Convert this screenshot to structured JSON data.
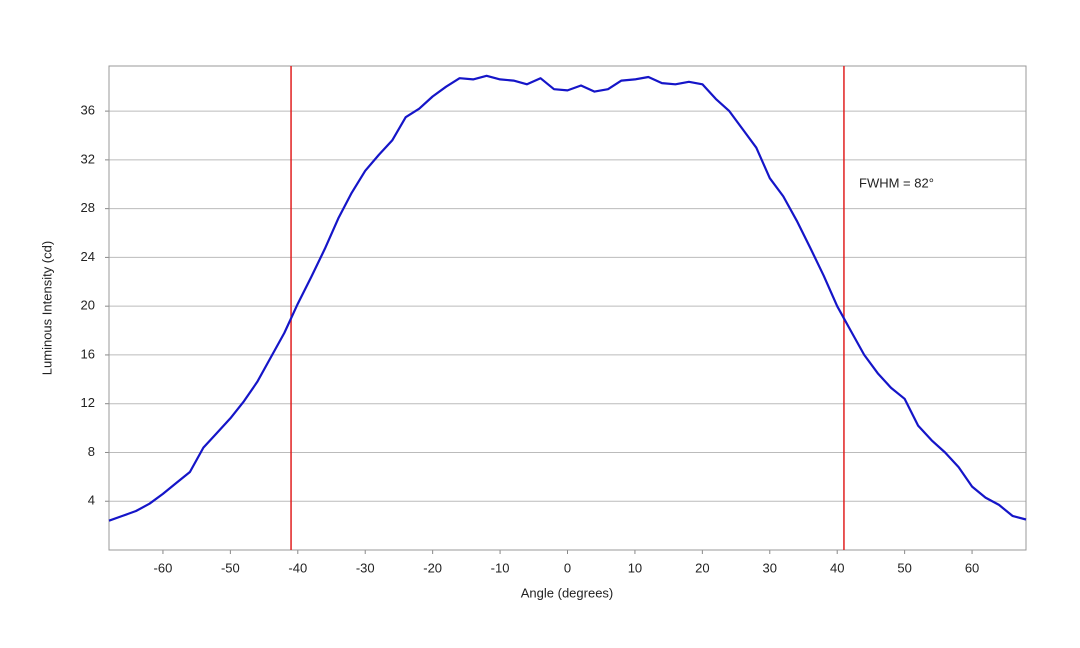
{
  "chart_data": {
    "type": "line",
    "xlabel": "Angle (degrees)",
    "ylabel": "Luminous Intensity (cd)",
    "annotation": "FWHM = 82°",
    "xlim": [
      -68,
      68
    ],
    "ylim": [
      0,
      39.7
    ],
    "xticks": [
      -60,
      -50,
      -40,
      -30,
      -20,
      -10,
      0,
      10,
      20,
      30,
      40,
      50,
      60
    ],
    "yticks": [
      4,
      8,
      12,
      16,
      20,
      24,
      28,
      32,
      36
    ],
    "grid": true,
    "vlines": {
      "color": "#e02020",
      "values": [
        -41,
        41
      ]
    },
    "x": [
      -68,
      -66,
      -64,
      -62,
      -60,
      -58,
      -56,
      -54,
      -52,
      -50,
      -48,
      -46,
      -44,
      -42,
      -40,
      -38,
      -36,
      -34,
      -32,
      -30,
      -28,
      -26,
      -24,
      -22,
      -20,
      -18,
      -16,
      -14,
      -12,
      -10,
      -8,
      -6,
      -4,
      -2,
      0,
      2,
      4,
      6,
      8,
      10,
      12,
      14,
      16,
      18,
      20,
      22,
      24,
      26,
      28,
      30,
      32,
      34,
      36,
      38,
      40,
      42,
      44,
      46,
      48,
      50,
      52,
      54,
      56,
      58,
      60,
      62,
      64,
      66,
      68
    ],
    "series": [
      {
        "name": "Luminous Intensity",
        "color": "#1515c8",
        "values": [
          2.4,
          2.8,
          3.2,
          3.8,
          4.6,
          5.5,
          6.4,
          8.4,
          9.6,
          10.8,
          12.2,
          13.8,
          15.8,
          17.8,
          20.2,
          22.4,
          24.7,
          27.2,
          29.3,
          31.1,
          32.4,
          33.6,
          35.5,
          36.2,
          37.2,
          38.0,
          38.7,
          38.6,
          38.9,
          38.6,
          38.5,
          38.2,
          38.7,
          37.8,
          37.7,
          38.1,
          37.6,
          37.8,
          38.5,
          38.6,
          38.8,
          38.3,
          38.2,
          38.4,
          38.2,
          37.0,
          36.0,
          34.5,
          33.0,
          30.5,
          29.0,
          27.0,
          24.8,
          22.5,
          20.0,
          18.0,
          16.0,
          14.5,
          13.3,
          12.4,
          10.2,
          9.0,
          8.0,
          6.8,
          5.2,
          4.3,
          3.7,
          2.8,
          2.5
        ]
      }
    ]
  }
}
